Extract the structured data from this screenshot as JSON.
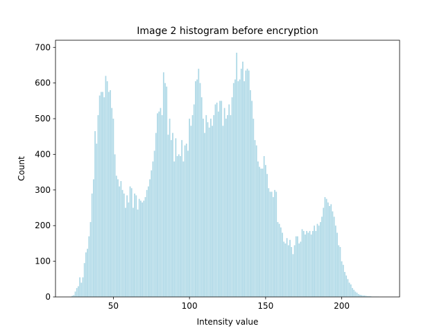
{
  "chart_data": {
    "type": "bar",
    "title": "Image 2 histogram before encryption",
    "xlabel": "Intensity value",
    "ylabel": "Count",
    "color": "#add8e6",
    "xlim": [
      12,
      238
    ],
    "xticks": [
      50,
      100,
      150,
      200
    ],
    "ylim": [
      0,
      720
    ],
    "yticks": [
      0,
      100,
      200,
      300,
      400,
      500,
      600,
      700
    ],
    "grid": false,
    "x": [
      23,
      24,
      25,
      26,
      27,
      28,
      29,
      30,
      31,
      32,
      33,
      34,
      35,
      36,
      37,
      38,
      39,
      40,
      41,
      42,
      43,
      44,
      45,
      46,
      47,
      48,
      49,
      50,
      51,
      52,
      53,
      54,
      55,
      56,
      57,
      58,
      59,
      60,
      61,
      62,
      63,
      64,
      65,
      66,
      67,
      68,
      69,
      70,
      71,
      72,
      73,
      74,
      75,
      76,
      77,
      78,
      79,
      80,
      81,
      82,
      83,
      84,
      85,
      86,
      87,
      88,
      89,
      90,
      91,
      92,
      93,
      94,
      95,
      96,
      97,
      98,
      99,
      100,
      101,
      102,
      103,
      104,
      105,
      106,
      107,
      108,
      109,
      110,
      111,
      112,
      113,
      114,
      115,
      116,
      117,
      118,
      119,
      120,
      121,
      122,
      123,
      124,
      125,
      126,
      127,
      128,
      129,
      130,
      131,
      132,
      133,
      134,
      135,
      136,
      137,
      138,
      139,
      140,
      141,
      142,
      143,
      144,
      145,
      146,
      147,
      148,
      149,
      150,
      151,
      152,
      153,
      154,
      155,
      156,
      157,
      158,
      159,
      160,
      161,
      162,
      163,
      164,
      165,
      166,
      167,
      168,
      169,
      170,
      171,
      172,
      173,
      174,
      175,
      176,
      177,
      178,
      179,
      180,
      181,
      182,
      183,
      184,
      185,
      186,
      187,
      188,
      189,
      190,
      191,
      192,
      193,
      194,
      195,
      196,
      197,
      198,
      199,
      200,
      201,
      202,
      203,
      204,
      205,
      206,
      207,
      208,
      209,
      210,
      211,
      212,
      213,
      214,
      215,
      216,
      217,
      218,
      219,
      220,
      221,
      222,
      223,
      224
    ],
    "values": [
      3,
      5,
      15,
      25,
      30,
      55,
      40,
      55,
      95,
      125,
      135,
      170,
      210,
      290,
      330,
      465,
      430,
      510,
      565,
      575,
      575,
      560,
      620,
      605,
      575,
      580,
      530,
      500,
      400,
      340,
      330,
      310,
      325,
      300,
      290,
      250,
      285,
      265,
      310,
      305,
      250,
      290,
      285,
      245,
      275,
      270,
      265,
      270,
      280,
      300,
      310,
      330,
      355,
      380,
      410,
      460,
      515,
      520,
      530,
      510,
      630,
      600,
      590,
      455,
      500,
      440,
      460,
      380,
      445,
      395,
      400,
      395,
      440,
      380,
      425,
      430,
      410,
      500,
      480,
      510,
      540,
      605,
      610,
      640,
      600,
      560,
      500,
      460,
      510,
      490,
      475,
      500,
      480,
      510,
      540,
      545,
      520,
      550,
      550,
      480,
      530,
      500,
      510,
      540,
      510,
      560,
      600,
      610,
      685,
      605,
      610,
      640,
      660,
      605,
      635,
      640,
      635,
      580,
      550,
      500,
      440,
      425,
      380,
      365,
      360,
      360,
      395,
      370,
      345,
      305,
      295,
      295,
      280,
      300,
      295,
      210,
      205,
      195,
      180,
      155,
      150,
      165,
      145,
      160,
      140,
      120,
      145,
      170,
      170,
      150,
      155,
      190,
      185,
      175,
      185,
      180,
      185,
      175,
      185,
      200,
      185,
      205,
      200,
      210,
      225,
      250,
      280,
      275,
      265,
      255,
      260,
      240,
      225,
      200,
      180,
      145,
      140,
      100,
      90,
      70,
      60,
      50,
      40,
      35,
      25,
      20,
      15,
      12,
      8,
      6,
      5,
      4,
      4,
      3,
      2,
      2,
      2,
      1,
      1,
      1,
      1,
      1
    ]
  }
}
